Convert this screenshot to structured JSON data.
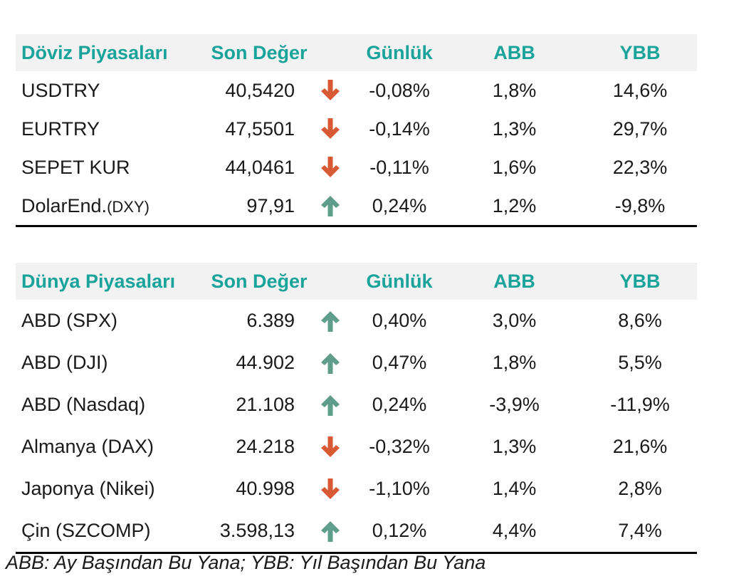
{
  "colors": {
    "header_text": "#1aa39a",
    "header_bg": "#f2f2f2",
    "arrow_up": "#5e9e8a",
    "arrow_down": "#d85a34"
  },
  "fx": {
    "headers": {
      "name": "Döviz Piyasaları",
      "value": "Son Değer",
      "daily": "Günlük",
      "abb": "ABB",
      "ybb": "YBB"
    },
    "rows": [
      {
        "name": "USDTRY",
        "name_suffix": "",
        "value": "40,5420",
        "trend": "down",
        "daily": "-0,08%",
        "abb": "1,8%",
        "ybb": "14,6%"
      },
      {
        "name": "EURTRY",
        "name_suffix": "",
        "value": "47,5501",
        "trend": "down",
        "daily": "-0,14%",
        "abb": "1,3%",
        "ybb": "29,7%"
      },
      {
        "name": "SEPET KUR",
        "name_suffix": "",
        "value": "44,0461",
        "trend": "down",
        "daily": "-0,11%",
        "abb": "1,6%",
        "ybb": "22,3%"
      },
      {
        "name": "DolarEnd.",
        "name_suffix": "(DXY)",
        "value": "97,91",
        "trend": "up",
        "daily": "0,24%",
        "abb": "1,2%",
        "ybb": "-9,8%"
      }
    ]
  },
  "world": {
    "headers": {
      "name": "Dünya Piyasaları",
      "value": "Son Değer",
      "daily": "Günlük",
      "abb": "ABB",
      "ybb": "YBB"
    },
    "rows": [
      {
        "name": "ABD (SPX)",
        "name_suffix": "",
        "value": "6.389",
        "trend": "up",
        "daily": "0,40%",
        "abb": "3,0%",
        "ybb": "8,6%"
      },
      {
        "name": "ABD (DJI)",
        "name_suffix": "",
        "value": "44.902",
        "trend": "up",
        "daily": "0,47%",
        "abb": "1,8%",
        "ybb": "5,5%"
      },
      {
        "name": "ABD (Nasdaq)",
        "name_suffix": "",
        "value": "21.108",
        "trend": "up",
        "daily": "0,24%",
        "abb": "-3,9%",
        "ybb": "-11,9%"
      },
      {
        "name": "Almanya (DAX)",
        "name_suffix": "",
        "value": "24.218",
        "trend": "down",
        "daily": "-0,32%",
        "abb": "1,3%",
        "ybb": "21,6%"
      },
      {
        "name": "Japonya (Nikei)",
        "name_suffix": "",
        "value": "40.998",
        "trend": "down",
        "daily": "-1,10%",
        "abb": "1,4%",
        "ybb": "2,8%"
      },
      {
        "name": "Çin (SZCOMP)",
        "name_suffix": "",
        "value": "3.598,13",
        "trend": "up",
        "daily": "0,12%",
        "abb": "4,4%",
        "ybb": "7,4%"
      }
    ]
  },
  "footnote": "ABB: Ay Başından Bu Yana; YBB: Yıl Başından Bu Yana",
  "icons": {
    "up": "arrow-up-icon",
    "down": "arrow-down-icon"
  }
}
